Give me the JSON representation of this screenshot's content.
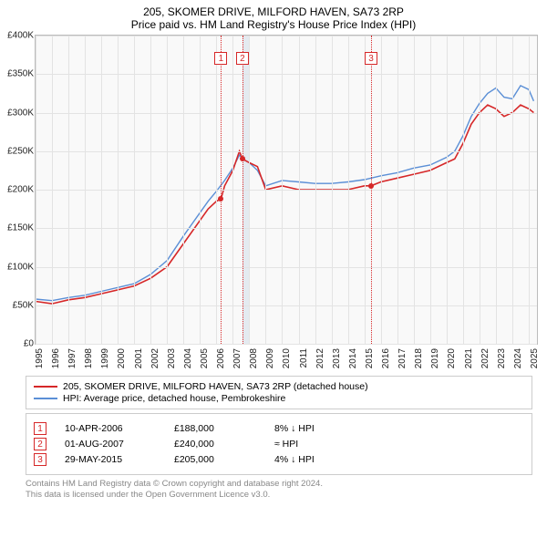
{
  "title": "205, SKOMER DRIVE, MILFORD HAVEN, SA73 2RP",
  "subtitle": "Price paid vs. HM Land Registry's House Price Index (HPI)",
  "chart": {
    "type": "line",
    "background_color": "#f9f9f9",
    "grid_color": "#e3e3e3",
    "border_color": "#bbbbbb",
    "x": {
      "min": 1995,
      "max": 2025.5,
      "ticks_start": 1995,
      "ticks_end": 2025,
      "tick_step": 1
    },
    "y": {
      "min": 0,
      "max": 400000,
      "ticks": [
        0,
        50000,
        100000,
        150000,
        200000,
        250000,
        300000,
        350000,
        400000
      ],
      "labels": [
        "£0",
        "£50K",
        "£100K",
        "£150K",
        "£200K",
        "£250K",
        "£300K",
        "£350K",
        "£400K"
      ]
    },
    "series": [
      {
        "name": "205, SKOMER DRIVE, MILFORD HAVEN, SA73 2RP (detached house)",
        "color": "#d62728",
        "width": 1.6,
        "points": [
          [
            1995,
            55000
          ],
          [
            1996,
            52000
          ],
          [
            1997,
            57000
          ],
          [
            1998,
            60000
          ],
          [
            1999,
            65000
          ],
          [
            2000,
            70000
          ],
          [
            2001,
            75000
          ],
          [
            2002,
            85000
          ],
          [
            2003,
            100000
          ],
          [
            2004,
            130000
          ],
          [
            2005,
            160000
          ],
          [
            2005.5,
            175000
          ],
          [
            2006,
            185000
          ],
          [
            2006.28,
            188000
          ],
          [
            2006.5,
            205000
          ],
          [
            2007,
            225000
          ],
          [
            2007.4,
            250000
          ],
          [
            2007.58,
            240000
          ],
          [
            2008,
            235000
          ],
          [
            2008.5,
            230000
          ],
          [
            2009,
            200000
          ],
          [
            2010,
            205000
          ],
          [
            2011,
            200000
          ],
          [
            2012,
            200000
          ],
          [
            2013,
            200000
          ],
          [
            2014,
            200000
          ],
          [
            2015,
            205000
          ],
          [
            2015.41,
            205000
          ],
          [
            2016,
            210000
          ],
          [
            2017,
            215000
          ],
          [
            2018,
            220000
          ],
          [
            2019,
            225000
          ],
          [
            2020,
            235000
          ],
          [
            2020.5,
            240000
          ],
          [
            2021,
            260000
          ],
          [
            2021.5,
            285000
          ],
          [
            2022,
            300000
          ],
          [
            2022.5,
            310000
          ],
          [
            2023,
            305000
          ],
          [
            2023.5,
            295000
          ],
          [
            2024,
            300000
          ],
          [
            2024.5,
            310000
          ],
          [
            2025,
            305000
          ],
          [
            2025.3,
            300000
          ]
        ]
      },
      {
        "name": "HPI: Average price, detached house, Pembrokeshire",
        "color": "#5b8fd6",
        "width": 1.4,
        "points": [
          [
            1995,
            58000
          ],
          [
            1996,
            56000
          ],
          [
            1997,
            60000
          ],
          [
            1998,
            63000
          ],
          [
            1999,
            68000
          ],
          [
            2000,
            73000
          ],
          [
            2001,
            78000
          ],
          [
            2002,
            90000
          ],
          [
            2003,
            108000
          ],
          [
            2004,
            140000
          ],
          [
            2005,
            170000
          ],
          [
            2005.5,
            185000
          ],
          [
            2006,
            198000
          ],
          [
            2006.5,
            212000
          ],
          [
            2007,
            228000
          ],
          [
            2007.4,
            245000
          ],
          [
            2007.58,
            240000
          ],
          [
            2008,
            235000
          ],
          [
            2008.5,
            225000
          ],
          [
            2009,
            205000
          ],
          [
            2010,
            212000
          ],
          [
            2011,
            210000
          ],
          [
            2012,
            208000
          ],
          [
            2013,
            208000
          ],
          [
            2014,
            210000
          ],
          [
            2015,
            213000
          ],
          [
            2016,
            218000
          ],
          [
            2017,
            222000
          ],
          [
            2018,
            228000
          ],
          [
            2019,
            232000
          ],
          [
            2020,
            242000
          ],
          [
            2020.5,
            250000
          ],
          [
            2021,
            270000
          ],
          [
            2021.5,
            295000
          ],
          [
            2022,
            312000
          ],
          [
            2022.5,
            325000
          ],
          [
            2023,
            332000
          ],
          [
            2023.5,
            320000
          ],
          [
            2024,
            318000
          ],
          [
            2024.5,
            335000
          ],
          [
            2025,
            330000
          ],
          [
            2025.3,
            315000
          ]
        ]
      }
    ],
    "markers": [
      {
        "num": "1",
        "x": 2006.28,
        "y": 188000,
        "date": "10-APR-2006",
        "price": "£188,000",
        "rel": "8% ↓ HPI"
      },
      {
        "num": "2",
        "x": 2007.58,
        "y": 240000,
        "date": "01-AUG-2007",
        "price": "£240,000",
        "rel": "≈ HPI",
        "band_end": 2008.0
      },
      {
        "num": "3",
        "x": 2015.41,
        "y": 205000,
        "date": "29-MAY-2015",
        "price": "£205,000",
        "rel": "4% ↓ HPI"
      }
    ]
  },
  "legend": {
    "rows": [
      {
        "color": "#d62728",
        "label": "205, SKOMER DRIVE, MILFORD HAVEN, SA73 2RP (detached house)"
      },
      {
        "color": "#5b8fd6",
        "label": "HPI: Average price, detached house, Pembrokeshire"
      }
    ]
  },
  "footer_line1": "Contains HM Land Registry data © Crown copyright and database right 2024.",
  "footer_line2": "This data is licensed under the Open Government Licence v3.0."
}
